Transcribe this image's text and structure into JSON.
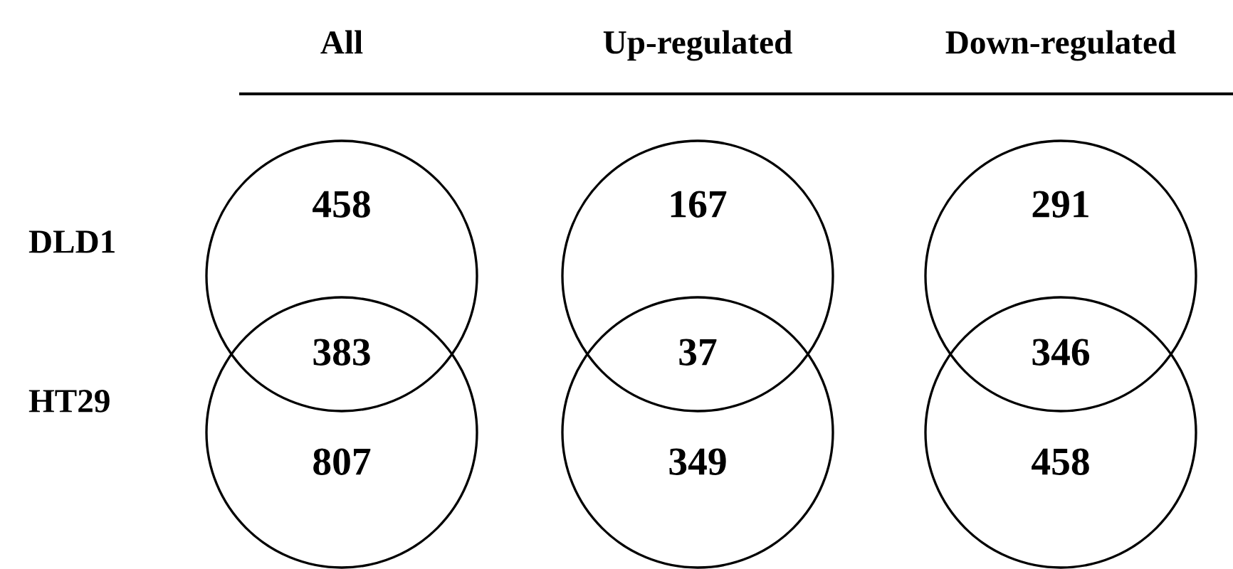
{
  "chart_data": [
    {
      "type": "other",
      "title": "All",
      "categories": [
        null,
        null,
        null
      ],
      "values": [
        458,
        383,
        807
      ],
      "data_labels": true,
      "annotations": [
        "DLD1",
        "HT29"
      ],
      "color": "#000000"
    },
    {
      "type": "other",
      "title": "Up-regulated",
      "categories": [
        null,
        null,
        null
      ],
      "values": [
        167,
        37,
        349
      ],
      "data_labels": true,
      "color": "#000000"
    },
    {
      "type": "other",
      "title": "Down-regulated",
      "categories": [
        null,
        null,
        null
      ],
      "values": [
        291,
        346,
        458
      ],
      "data_labels": true,
      "color": "#000000"
    }
  ]
}
